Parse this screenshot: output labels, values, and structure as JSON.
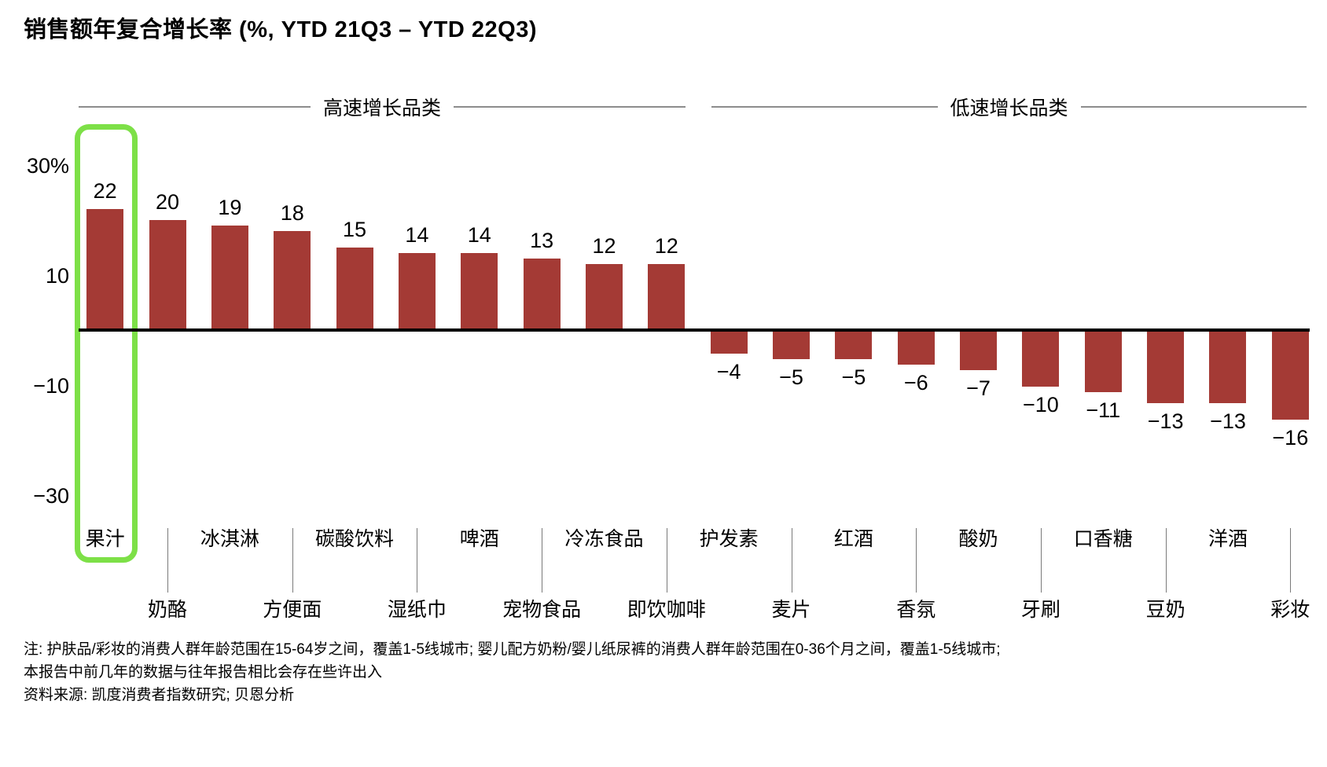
{
  "title": "销售额年复合增长率 (%, YTD 21Q3 – YTD 22Q3)",
  "chart_data": {
    "type": "bar",
    "title": "销售额年复合增长率 (%, YTD 21Q3 – YTD 22Q3)",
    "unit": "%",
    "bar_color": "#A43A35",
    "highlight_color": "#7DE047",
    "grid": false,
    "legend": "none",
    "ylim": [
      -35,
      35
    ],
    "yticks": [
      {
        "label": "30%",
        "value": 30
      },
      {
        "label": "10",
        "value": 10
      },
      {
        "label": "−10",
        "value": -10
      },
      {
        "label": "−30",
        "value": -30
      }
    ],
    "groups": [
      {
        "label": "高速增长品类",
        "from_index": 0,
        "to_index": 9
      },
      {
        "label": "低速增长品类",
        "from_index": 10,
        "to_index": 19
      }
    ],
    "categories": [
      "果汁",
      "奶酪",
      "冰淇淋",
      "方便面",
      "碳酸饮料",
      "湿纸巾",
      "啤酒",
      "宠物食品",
      "冷冻食品",
      "即饮咖啡",
      "护发素",
      "麦片",
      "红酒",
      "香氛",
      "酸奶",
      "牙刷",
      "口香糖",
      "豆奶",
      "洋酒",
      "彩妆"
    ],
    "values": [
      22,
      20,
      19,
      18,
      15,
      14,
      14,
      13,
      12,
      12,
      -4,
      -5,
      -5,
      -6,
      -7,
      -10,
      -11,
      -13,
      -13,
      -16
    ],
    "value_labels": [
      "22",
      "20",
      "19",
      "18",
      "15",
      "14",
      "14",
      "13",
      "12",
      "12",
      "−4",
      "−5",
      "−5",
      "−6",
      "−7",
      "−10",
      "−11",
      "−13",
      "−13",
      "−16"
    ],
    "highlighted_category": "果汁"
  },
  "footnotes": [
    "注: 护肤品/彩妆的消费人群年龄范围在15-64岁之间，覆盖1-5线城市; 婴儿配方奶粉/婴儿纸尿裤的消费人群年龄范围在0-36个月之间，覆盖1-5线城市;",
    "本报告中前几年的数据与往年报告相比会存在些许出入",
    "资料来源: 凯度消费者指数研究; 贝恩分析"
  ]
}
